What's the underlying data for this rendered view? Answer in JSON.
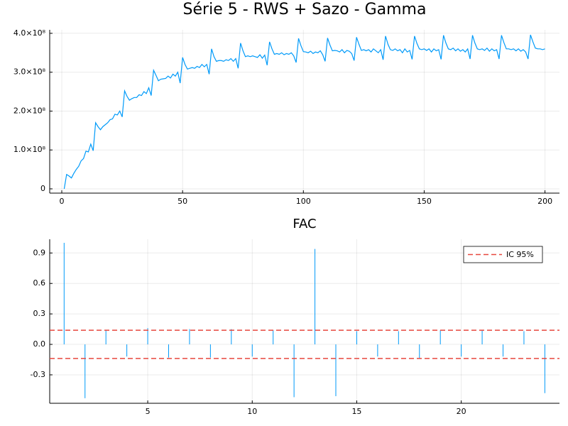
{
  "chart_data": [
    {
      "type": "line",
      "title": "Série 5 - RWS + Sazo - Gamma",
      "color": "#009af9",
      "grid": true,
      "x": [
        1,
        2,
        3,
        4,
        5,
        6,
        7,
        8,
        9,
        10,
        11,
        12,
        13,
        14,
        15,
        16,
        17,
        18,
        19,
        20,
        21,
        22,
        23,
        24,
        25,
        26,
        27,
        28,
        29,
        30,
        31,
        32,
        33,
        34,
        35,
        36,
        37,
        38,
        39,
        40,
        41,
        42,
        43,
        44,
        45,
        46,
        47,
        48,
        49,
        50,
        51,
        52,
        53,
        54,
        55,
        56,
        57,
        58,
        59,
        60,
        61,
        62,
        63,
        64,
        65,
        66,
        67,
        68,
        69,
        70,
        71,
        72,
        73,
        74,
        75,
        76,
        77,
        78,
        79,
        80,
        81,
        82,
        83,
        84,
        85,
        86,
        87,
        88,
        89,
        90,
        91,
        92,
        93,
        94,
        95,
        96,
        97,
        98,
        99,
        100,
        101,
        102,
        103,
        104,
        105,
        106,
        107,
        108,
        109,
        110,
        111,
        112,
        113,
        114,
        115,
        116,
        117,
        118,
        119,
        120,
        121,
        122,
        123,
        124,
        125,
        126,
        127,
        128,
        129,
        130,
        131,
        132,
        133,
        134,
        135,
        136,
        137,
        138,
        139,
        140,
        141,
        142,
        143,
        144,
        145,
        146,
        147,
        148,
        149,
        150,
        151,
        152,
        153,
        154,
        155,
        156,
        157,
        158,
        159,
        160,
        161,
        162,
        163,
        164,
        165,
        166,
        167,
        168,
        169,
        170,
        171,
        172,
        173,
        174,
        175,
        176,
        177,
        178,
        179,
        180,
        181,
        182,
        183,
        184,
        185,
        186,
        187,
        188,
        189,
        190,
        191,
        192,
        193,
        194,
        195,
        196,
        197,
        198,
        199,
        200
      ],
      "values": [
        0,
        37000000.0,
        33000000.0,
        28000000.0,
        40000000.0,
        50000000.0,
        58000000.0,
        72000000.0,
        78000000.0,
        97000000.0,
        95000000.0,
        115000000.0,
        98000000.0,
        170000000.0,
        160000000.0,
        152000000.0,
        160000000.0,
        165000000.0,
        170000000.0,
        178000000.0,
        180000000.0,
        192000000.0,
        190000000.0,
        200000000.0,
        185000000.0,
        252000000.0,
        238000000.0,
        228000000.0,
        232000000.0,
        235000000.0,
        235000000.0,
        242000000.0,
        240000000.0,
        250000000.0,
        245000000.0,
        260000000.0,
        240000000.0,
        305000000.0,
        292000000.0,
        278000000.0,
        282000000.0,
        283000000.0,
        284000000.0,
        290000000.0,
        285000000.0,
        295000000.0,
        290000000.0,
        300000000.0,
        272000000.0,
        338000000.0,
        320000000.0,
        308000000.0,
        310000000.0,
        312000000.0,
        310000000.0,
        315000000.0,
        312000000.0,
        320000000.0,
        314000000.0,
        320000000.0,
        295000000.0,
        360000000.0,
        340000000.0,
        328000000.0,
        330000000.0,
        330000000.0,
        328000000.0,
        332000000.0,
        330000000.0,
        335000000.0,
        328000000.0,
        335000000.0,
        310000000.0,
        375000000.0,
        355000000.0,
        340000000.0,
        342000000.0,
        340000000.0,
        342000000.0,
        340000000.0,
        338000000.0,
        345000000.0,
        336000000.0,
        344000000.0,
        318000000.0,
        378000000.0,
        360000000.0,
        346000000.0,
        348000000.0,
        346000000.0,
        350000000.0,
        345000000.0,
        348000000.0,
        346000000.0,
        350000000.0,
        342000000.0,
        325000000.0,
        387000000.0,
        368000000.0,
        353000000.0,
        352000000.0,
        350000000.0,
        354000000.0,
        348000000.0,
        352000000.0,
        350000000.0,
        355000000.0,
        345000000.0,
        328000000.0,
        388000000.0,
        370000000.0,
        355000000.0,
        356000000.0,
        355000000.0,
        352000000.0,
        358000000.0,
        350000000.0,
        356000000.0,
        354000000.0,
        348000000.0,
        330000000.0,
        390000000.0,
        372000000.0,
        356000000.0,
        358000000.0,
        355000000.0,
        358000000.0,
        352000000.0,
        360000000.0,
        355000000.0,
        350000000.0,
        358000000.0,
        332000000.0,
        393000000.0,
        372000000.0,
        358000000.0,
        356000000.0,
        360000000.0,
        355000000.0,
        358000000.0,
        350000000.0,
        360000000.0,
        352000000.0,
        356000000.0,
        333000000.0,
        393000000.0,
        374000000.0,
        360000000.0,
        358000000.0,
        360000000.0,
        356000000.0,
        360000000.0,
        352000000.0,
        360000000.0,
        355000000.0,
        358000000.0,
        333000000.0,
        395000000.0,
        375000000.0,
        360000000.0,
        358000000.0,
        362000000.0,
        355000000.0,
        360000000.0,
        354000000.0,
        358000000.0,
        352000000.0,
        360000000.0,
        334000000.0,
        395000000.0,
        375000000.0,
        360000000.0,
        358000000.0,
        360000000.0,
        356000000.0,
        362000000.0,
        354000000.0,
        360000000.0,
        355000000.0,
        358000000.0,
        334000000.0,
        395000000.0,
        376000000.0,
        360000000.0,
        360000000.0,
        358000000.0,
        360000000.0,
        355000000.0,
        360000000.0,
        354000000.0,
        358000000.0,
        352000000.0,
        334000000.0,
        396000000.0,
        378000000.0,
        362000000.0,
        360000000.0,
        360000000.0,
        358000000.0,
        360000000.0
      ],
      "xlim": [
        -5,
        206
      ],
      "xticks": [
        0,
        50,
        100,
        150,
        200
      ],
      "ylim": [
        -11000000.0,
        409000000.0
      ],
      "yticks": [
        0,
        {
          "value": 100000000.0,
          "label": "1.0×10⁸"
        },
        {
          "value": 200000000.0,
          "label": "2.0×10⁸"
        },
        {
          "value": 300000000.0,
          "label": "3.0×10⁸"
        },
        {
          "value": 400000000.0,
          "label": "4.0×10⁸"
        }
      ]
    },
    {
      "type": "stem",
      "title": "FAC",
      "color": "#009af9",
      "grid": true,
      "legend": "top-right",
      "x": [
        1,
        2,
        3,
        4,
        5,
        6,
        7,
        8,
        9,
        10,
        11,
        12,
        13,
        14,
        15,
        16,
        17,
        18,
        19,
        20,
        21,
        22,
        23,
        24
      ],
      "values": [
        1.0,
        -0.53,
        0.14,
        -0.12,
        0.16,
        -0.13,
        0.15,
        -0.13,
        0.15,
        -0.12,
        0.14,
        -0.52,
        0.94,
        -0.51,
        0.13,
        -0.12,
        0.13,
        -0.14,
        0.14,
        -0.12,
        0.14,
        -0.12,
        0.13,
        -0.48
      ],
      "hlines": {
        "name": "IC 95%",
        "color": "#e8483f",
        "values": [
          0.139,
          -0.139
        ]
      },
      "xlim": [
        0.31,
        24.7
      ],
      "xticks": [
        5,
        10,
        15,
        20
      ],
      "ylim": [
        -0.58,
        1.035
      ],
      "yticks": [
        -0.3,
        {
          "value": 0,
          "label": "0.0"
        },
        0.3,
        0.6,
        0.9
      ]
    }
  ]
}
